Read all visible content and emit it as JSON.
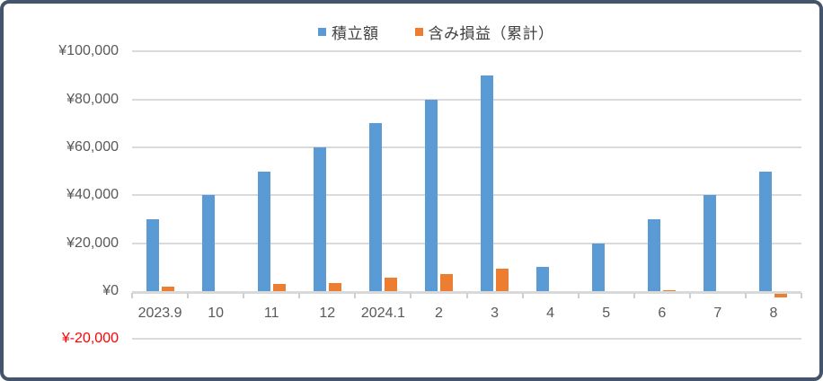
{
  "legend": {
    "series1_label": "積立額",
    "series2_label": "含み損益（累計）"
  },
  "colors": {
    "series1": "#5B9BD5",
    "series2": "#ED7D31",
    "gridline": "#DADADA",
    "axis_line": "#D9D9D9",
    "tick": "#CFCFCF",
    "axis_text": "#595959",
    "negative_text": "#FF0000",
    "frame_border": "#44546A"
  },
  "y_axis": {
    "tick_labels": [
      "¥100,000",
      "¥80,000",
      "¥60,000",
      "¥40,000",
      "¥20,000",
      "¥0",
      "¥-20,000"
    ],
    "tick_values": [
      100000,
      80000,
      60000,
      40000,
      20000,
      0,
      -20000
    ]
  },
  "chart_data": {
    "type": "bar",
    "title": "",
    "xlabel": "",
    "ylabel": "",
    "categories": [
      "2023.9",
      "10",
      "11",
      "12",
      "2024.1",
      "2",
      "3",
      "4",
      "5",
      "6",
      "7",
      "8"
    ],
    "series": [
      {
        "name": "積立額",
        "color": "#5B9BD5",
        "values": [
          30000,
          40000,
          50000,
          60000,
          70000,
          80000,
          90000,
          10000,
          20000,
          30000,
          40000,
          50000
        ]
      },
      {
        "name": "含み損益（累計）",
        "color": "#ED7D31",
        "values": [
          1700,
          0,
          3000,
          3400,
          5600,
          7000,
          9500,
          0,
          0,
          500,
          0,
          -1500
        ]
      }
    ],
    "ylim": [
      -20000,
      100000
    ],
    "y_tick_interval": 20000,
    "currency_prefix": "¥",
    "grid": true,
    "legend_position": "top-center"
  }
}
